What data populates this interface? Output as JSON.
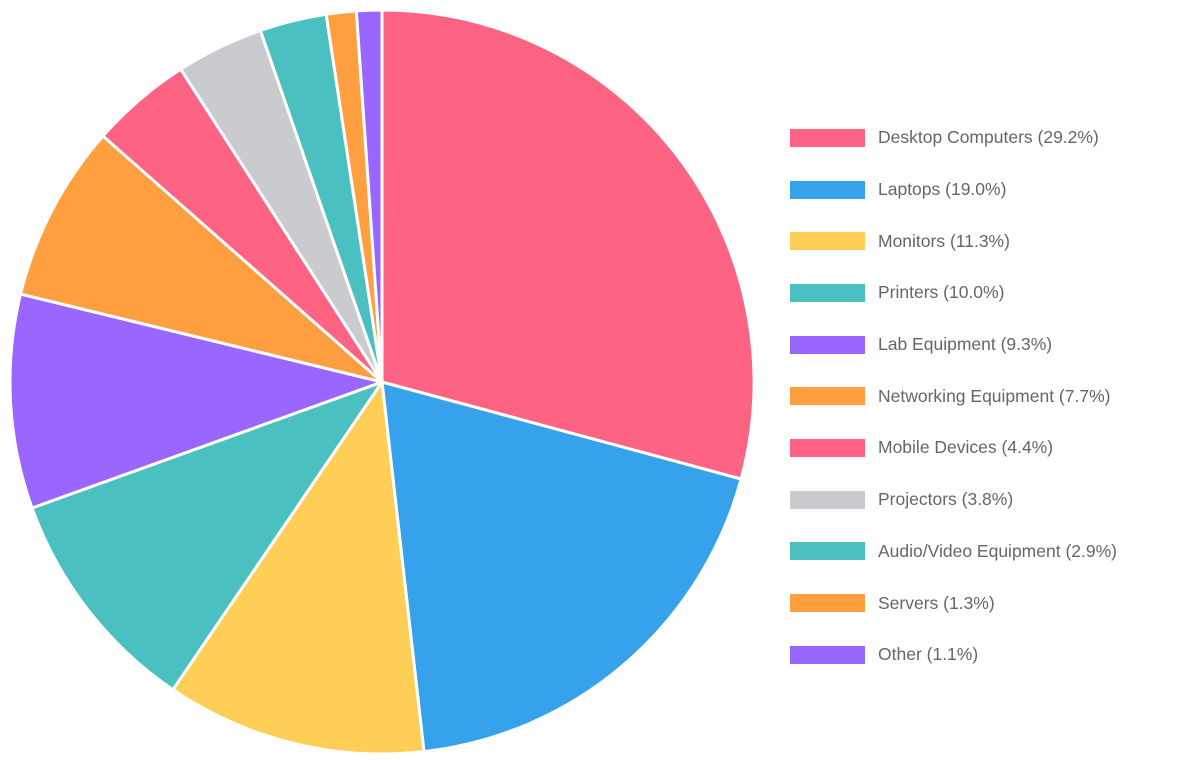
{
  "chart_data": {
    "type": "pie",
    "title": "",
    "legend_position": "right",
    "slices": [
      {
        "label": "Desktop Computers",
        "value": 29.2,
        "legend": "Desktop Computers (29.2%)",
        "color": "#FF6384"
      },
      {
        "label": "Laptops",
        "value": 19.0,
        "legend": "Laptops (19.0%)",
        "color": "#36A2EB"
      },
      {
        "label": "Monitors",
        "value": 11.3,
        "legend": "Monitors (11.3%)",
        "color": "#FFCE56"
      },
      {
        "label": "Printers",
        "value": 10.0,
        "legend": "Printers (10.0%)",
        "color": "#4BC0C0"
      },
      {
        "label": "Lab Equipment",
        "value": 9.3,
        "legend": "Lab Equipment (9.3%)",
        "color": "#9966FF"
      },
      {
        "label": "Networking Equipment",
        "value": 7.7,
        "legend": "Networking Equipment (7.7%)",
        "color": "#FF9F40"
      },
      {
        "label": "Mobile Devices",
        "value": 4.4,
        "legend": "Mobile Devices (4.4%)",
        "color": "#FF6384"
      },
      {
        "label": "Projectors",
        "value": 3.8,
        "legend": "Projectors (3.8%)",
        "color": "#C9CBCF"
      },
      {
        "label": "Audio/Video Equipment",
        "value": 2.9,
        "legend": "Audio/Video Equipment (2.9%)",
        "color": "#4BC0C0"
      },
      {
        "label": "Servers",
        "value": 1.3,
        "legend": "Servers (1.3%)",
        "color": "#FF9F40"
      },
      {
        "label": "Other",
        "value": 1.1,
        "legend": "Other (1.1%)",
        "color": "#9966FF"
      }
    ]
  }
}
